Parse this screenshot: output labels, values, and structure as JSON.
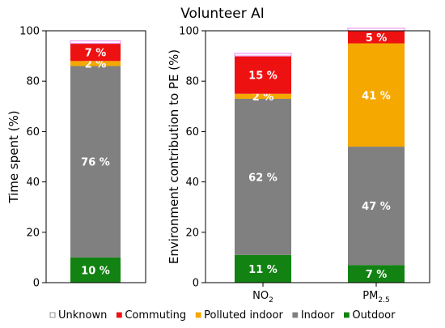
{
  "title": "Volunteer AI",
  "colors": {
    "Unknown": "#ffffff",
    "Commuting": "#ee1111",
    "Polluted indoor": "#f5a800",
    "Indoor": "#808080",
    "Outdoor": "#128212",
    "edge": "#ee99ee"
  },
  "legend": {
    "placement": "bottom",
    "items": [
      {
        "name": "Unknown",
        "color_key": "Unknown"
      },
      {
        "name": "Commuting",
        "color_key": "Commuting"
      },
      {
        "name": "Polluted indoor",
        "color_key": "Polluted indoor"
      },
      {
        "name": "Indoor",
        "color_key": "Indoor"
      },
      {
        "name": "Outdoor",
        "color_key": "Outdoor"
      }
    ]
  },
  "chart_data": [
    {
      "type": "bar",
      "stacked": true,
      "title": "",
      "ylabel": "Time spent (%)",
      "xlabel": "",
      "ylim": [
        0,
        100
      ],
      "yticks": [
        0,
        20,
        40,
        60,
        80,
        100
      ],
      "categories": [
        ""
      ],
      "series": [
        {
          "name": "Outdoor",
          "values": [
            10
          ],
          "labels": [
            "10 %"
          ]
        },
        {
          "name": "Indoor",
          "values": [
            76
          ],
          "labels": [
            "76 %"
          ]
        },
        {
          "name": "Polluted indoor",
          "values": [
            2
          ],
          "labels": [
            "2 %"
          ]
        },
        {
          "name": "Commuting",
          "values": [
            7
          ],
          "labels": [
            "7 %"
          ]
        },
        {
          "name": "Unknown",
          "values": [
            1
          ],
          "labels": [
            ""
          ]
        }
      ]
    },
    {
      "type": "bar",
      "stacked": true,
      "title": "",
      "ylabel": "Environment contribution to PE (%)",
      "xlabel": "",
      "ylim": [
        0,
        100
      ],
      "yticks": [
        0,
        20,
        40,
        60,
        80,
        100
      ],
      "categories": [
        {
          "main": "NO",
          "sub": "2"
        },
        {
          "main": "PM",
          "sub": "2.5"
        }
      ],
      "series": [
        {
          "name": "Outdoor",
          "values": [
            11,
            7
          ],
          "labels": [
            "11 %",
            "7 %"
          ]
        },
        {
          "name": "Indoor",
          "values": [
            62,
            47
          ],
          "labels": [
            "62 %",
            "47 %"
          ]
        },
        {
          "name": "Polluted indoor",
          "values": [
            2,
            41
          ],
          "labels": [
            "2 %",
            "41 %"
          ]
        },
        {
          "name": "Commuting",
          "values": [
            15,
            5
          ],
          "labels": [
            "15 %",
            "5 %"
          ]
        },
        {
          "name": "Unknown",
          "values": [
            1,
            1
          ],
          "labels": [
            "",
            ""
          ]
        }
      ]
    }
  ]
}
